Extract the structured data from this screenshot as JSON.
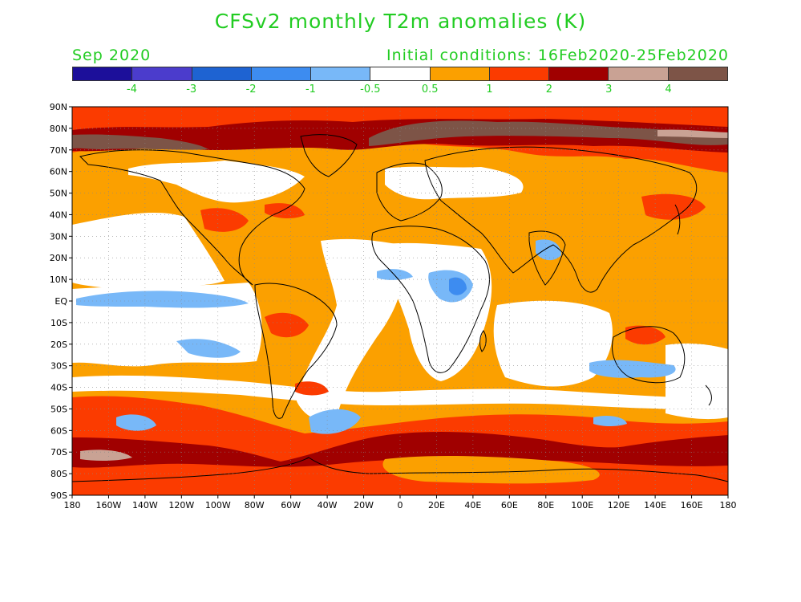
{
  "title": "CFSv2 monthly T2m anomalies (K)",
  "valid_month": "Sep 2020",
  "init_conditions": "Initial conditions: 16Feb2020-25Feb2020",
  "colorbar": {
    "colors": [
      "#1c0f9a",
      "#4b3ccc",
      "#1e63d2",
      "#3d8cf0",
      "#78b8f8",
      "#ffffff",
      "#fba000",
      "#fb3b00",
      "#a00000",
      "#c9a294",
      "#7d5447"
    ],
    "labels": [
      "-4",
      "-3",
      "-2",
      "-1",
      "-0.5",
      "0.5",
      "1",
      "2",
      "3",
      "4"
    ]
  },
  "map": {
    "lat_labels": [
      "90N",
      "80N",
      "70N",
      "60N",
      "50N",
      "40N",
      "30N",
      "20N",
      "10N",
      "EQ",
      "10S",
      "20S",
      "30S",
      "40S",
      "50S",
      "60S",
      "70S",
      "80S",
      "90S"
    ],
    "lon_labels": [
      "180",
      "160W",
      "140W",
      "120W",
      "100W",
      "80W",
      "60W",
      "40W",
      "20W",
      "0",
      "20E",
      "40E",
      "60E",
      "80E",
      "100E",
      "120E",
      "140E",
      "160E",
      "180"
    ]
  }
}
